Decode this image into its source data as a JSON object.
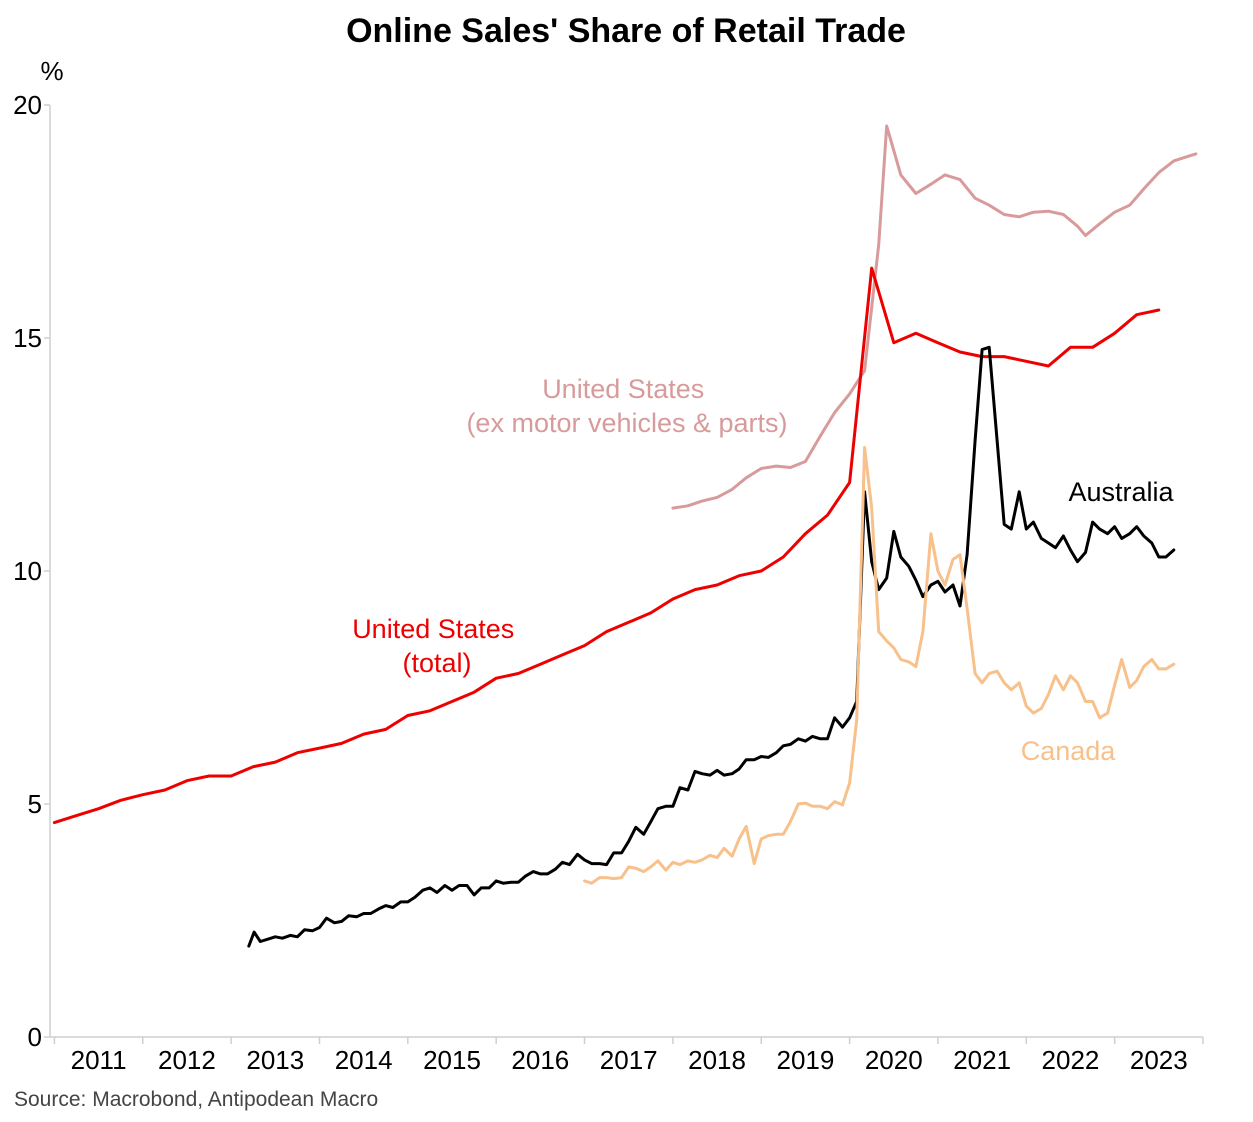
{
  "chart_data": {
    "type": "line",
    "title": "Online Sales' Share of Retail Trade",
    "ylabel": "%",
    "ylim": [
      0,
      20
    ],
    "yticks": [
      "0",
      "5",
      "10",
      "15",
      "20"
    ],
    "xlim": [
      2010.95,
      2024.0
    ],
    "xticks": [
      "2011",
      "2012",
      "2013",
      "2014",
      "2015",
      "2016",
      "2017",
      "2018",
      "2019",
      "2020",
      "2021",
      "2022",
      "2023"
    ],
    "source": "Source: Macrobond, Antipodean Macro",
    "colors": {
      "us_ex": "#d89a9a",
      "us_total": "#ee0000",
      "australia": "#000000",
      "canada": "#f8c08a"
    },
    "series": [
      {
        "id": "us_ex",
        "name_lines": [
          "United States",
          "(ex motor vehicles & parts)"
        ],
        "points": [
          [
            2018.0,
            11.35
          ],
          [
            2018.17,
            11.4
          ],
          [
            2018.33,
            11.5
          ],
          [
            2018.5,
            11.58
          ],
          [
            2018.67,
            11.75
          ],
          [
            2018.83,
            12.0
          ],
          [
            2019.0,
            12.2
          ],
          [
            2019.17,
            12.25
          ],
          [
            2019.33,
            12.22
          ],
          [
            2019.5,
            12.35
          ],
          [
            2019.67,
            12.9
          ],
          [
            2019.83,
            13.4
          ],
          [
            2020.0,
            13.8
          ],
          [
            2020.17,
            14.3
          ],
          [
            2020.33,
            17.0
          ],
          [
            2020.42,
            19.55
          ],
          [
            2020.58,
            18.5
          ],
          [
            2020.75,
            18.1
          ],
          [
            2020.92,
            18.3
          ],
          [
            2021.08,
            18.5
          ],
          [
            2021.25,
            18.4
          ],
          [
            2021.42,
            18.0
          ],
          [
            2021.58,
            17.85
          ],
          [
            2021.75,
            17.65
          ],
          [
            2021.92,
            17.6
          ],
          [
            2022.08,
            17.7
          ],
          [
            2022.25,
            17.72
          ],
          [
            2022.42,
            17.65
          ],
          [
            2022.58,
            17.4
          ],
          [
            2022.67,
            17.2
          ],
          [
            2022.83,
            17.45
          ],
          [
            2023.0,
            17.7
          ],
          [
            2023.17,
            17.85
          ],
          [
            2023.33,
            18.2
          ],
          [
            2023.5,
            18.55
          ],
          [
            2023.67,
            18.8
          ],
          [
            2023.83,
            18.9
          ],
          [
            2023.92,
            18.95
          ]
        ]
      },
      {
        "id": "us_total",
        "name_lines": [
          "United States",
          "(total)"
        ],
        "points": [
          [
            2011.0,
            4.6
          ],
          [
            2011.25,
            4.75
          ],
          [
            2011.5,
            4.9
          ],
          [
            2011.75,
            5.08
          ],
          [
            2012.0,
            5.2
          ],
          [
            2012.25,
            5.3
          ],
          [
            2012.5,
            5.5
          ],
          [
            2012.75,
            5.6
          ],
          [
            2013.0,
            5.6
          ],
          [
            2013.25,
            5.8
          ],
          [
            2013.5,
            5.9
          ],
          [
            2013.75,
            6.1
          ],
          [
            2014.0,
            6.2
          ],
          [
            2014.25,
            6.3
          ],
          [
            2014.5,
            6.5
          ],
          [
            2014.75,
            6.6
          ],
          [
            2015.0,
            6.9
          ],
          [
            2015.25,
            7.0
          ],
          [
            2015.5,
            7.2
          ],
          [
            2015.75,
            7.4
          ],
          [
            2016.0,
            7.7
          ],
          [
            2016.25,
            7.8
          ],
          [
            2016.5,
            8.0
          ],
          [
            2016.75,
            8.2
          ],
          [
            2017.0,
            8.4
          ],
          [
            2017.25,
            8.7
          ],
          [
            2017.5,
            8.9
          ],
          [
            2017.75,
            9.1
          ],
          [
            2018.0,
            9.4
          ],
          [
            2018.25,
            9.6
          ],
          [
            2018.5,
            9.7
          ],
          [
            2018.75,
            9.9
          ],
          [
            2019.0,
            10.0
          ],
          [
            2019.25,
            10.3
          ],
          [
            2019.5,
            10.8
          ],
          [
            2019.75,
            11.2
          ],
          [
            2020.0,
            11.9
          ],
          [
            2020.25,
            16.5
          ],
          [
            2020.5,
            14.9
          ],
          [
            2020.75,
            15.1
          ],
          [
            2021.0,
            14.9
          ],
          [
            2021.25,
            14.7
          ],
          [
            2021.5,
            14.6
          ],
          [
            2021.75,
            14.6
          ],
          [
            2022.0,
            14.5
          ],
          [
            2022.25,
            14.4
          ],
          [
            2022.5,
            14.8
          ],
          [
            2022.75,
            14.8
          ],
          [
            2023.0,
            15.1
          ],
          [
            2023.25,
            15.5
          ],
          [
            2023.5,
            15.6
          ]
        ]
      },
      {
        "id": "australia",
        "name_lines": [
          "Australia"
        ],
        "points": [
          [
            2013.2,
            1.95
          ],
          [
            2013.26,
            2.25
          ],
          [
            2013.33,
            2.05
          ],
          [
            2013.42,
            2.1
          ],
          [
            2013.5,
            2.15
          ],
          [
            2013.58,
            2.12
          ],
          [
            2013.67,
            2.18
          ],
          [
            2013.75,
            2.15
          ],
          [
            2013.83,
            2.3
          ],
          [
            2013.92,
            2.28
          ],
          [
            2014.0,
            2.35
          ],
          [
            2014.08,
            2.55
          ],
          [
            2014.17,
            2.45
          ],
          [
            2014.25,
            2.48
          ],
          [
            2014.33,
            2.6
          ],
          [
            2014.42,
            2.58
          ],
          [
            2014.5,
            2.65
          ],
          [
            2014.58,
            2.65
          ],
          [
            2014.67,
            2.75
          ],
          [
            2014.75,
            2.82
          ],
          [
            2014.83,
            2.78
          ],
          [
            2014.92,
            2.9
          ],
          [
            2015.0,
            2.9
          ],
          [
            2015.08,
            3.0
          ],
          [
            2015.17,
            3.15
          ],
          [
            2015.25,
            3.2
          ],
          [
            2015.33,
            3.1
          ],
          [
            2015.42,
            3.25
          ],
          [
            2015.5,
            3.15
          ],
          [
            2015.58,
            3.25
          ],
          [
            2015.67,
            3.25
          ],
          [
            2015.75,
            3.05
          ],
          [
            2015.83,
            3.2
          ],
          [
            2015.92,
            3.2
          ],
          [
            2016.0,
            3.35
          ],
          [
            2016.08,
            3.3
          ],
          [
            2016.17,
            3.32
          ],
          [
            2016.25,
            3.32
          ],
          [
            2016.33,
            3.45
          ],
          [
            2016.42,
            3.55
          ],
          [
            2016.5,
            3.5
          ],
          [
            2016.58,
            3.5
          ],
          [
            2016.67,
            3.6
          ],
          [
            2016.75,
            3.75
          ],
          [
            2016.83,
            3.7
          ],
          [
            2016.92,
            3.92
          ],
          [
            2017.0,
            3.8
          ],
          [
            2017.08,
            3.72
          ],
          [
            2017.17,
            3.72
          ],
          [
            2017.25,
            3.7
          ],
          [
            2017.33,
            3.95
          ],
          [
            2017.42,
            3.95
          ],
          [
            2017.5,
            4.2
          ],
          [
            2017.58,
            4.5
          ],
          [
            2017.67,
            4.35
          ],
          [
            2017.75,
            4.62
          ],
          [
            2017.83,
            4.9
          ],
          [
            2017.92,
            4.95
          ],
          [
            2018.0,
            4.95
          ],
          [
            2018.08,
            5.35
          ],
          [
            2018.17,
            5.3
          ],
          [
            2018.25,
            5.7
          ],
          [
            2018.33,
            5.65
          ],
          [
            2018.42,
            5.62
          ],
          [
            2018.5,
            5.72
          ],
          [
            2018.58,
            5.62
          ],
          [
            2018.67,
            5.65
          ],
          [
            2018.75,
            5.75
          ],
          [
            2018.83,
            5.95
          ],
          [
            2018.92,
            5.95
          ],
          [
            2019.0,
            6.02
          ],
          [
            2019.08,
            6.0
          ],
          [
            2019.17,
            6.1
          ],
          [
            2019.25,
            6.25
          ],
          [
            2019.33,
            6.28
          ],
          [
            2019.42,
            6.4
          ],
          [
            2019.5,
            6.35
          ],
          [
            2019.58,
            6.45
          ],
          [
            2019.67,
            6.4
          ],
          [
            2019.75,
            6.4
          ],
          [
            2019.83,
            6.85
          ],
          [
            2019.92,
            6.65
          ],
          [
            2020.0,
            6.85
          ],
          [
            2020.08,
            7.2
          ],
          [
            2020.17,
            11.7
          ],
          [
            2020.25,
            10.2
          ],
          [
            2020.33,
            9.6
          ],
          [
            2020.42,
            9.85
          ],
          [
            2020.5,
            10.85
          ],
          [
            2020.58,
            10.3
          ],
          [
            2020.67,
            10.1
          ],
          [
            2020.75,
            9.8
          ],
          [
            2020.83,
            9.45
          ],
          [
            2020.92,
            9.7
          ],
          [
            2021.0,
            9.78
          ],
          [
            2021.08,
            9.55
          ],
          [
            2021.17,
            9.7
          ],
          [
            2021.25,
            9.25
          ],
          [
            2021.33,
            10.35
          ],
          [
            2021.42,
            12.8
          ],
          [
            2021.5,
            14.75
          ],
          [
            2021.58,
            14.8
          ],
          [
            2021.67,
            12.8
          ],
          [
            2021.75,
            11.0
          ],
          [
            2021.83,
            10.9
          ],
          [
            2021.92,
            11.7
          ],
          [
            2022.0,
            10.9
          ],
          [
            2022.08,
            11.05
          ],
          [
            2022.17,
            10.7
          ],
          [
            2022.25,
            10.6
          ],
          [
            2022.33,
            10.5
          ],
          [
            2022.42,
            10.75
          ],
          [
            2022.5,
            10.45
          ],
          [
            2022.58,
            10.2
          ],
          [
            2022.67,
            10.4
          ],
          [
            2022.75,
            11.05
          ],
          [
            2022.83,
            10.9
          ],
          [
            2022.92,
            10.8
          ],
          [
            2023.0,
            10.95
          ],
          [
            2023.08,
            10.7
          ],
          [
            2023.17,
            10.8
          ],
          [
            2023.25,
            10.95
          ],
          [
            2023.33,
            10.75
          ],
          [
            2023.42,
            10.6
          ],
          [
            2023.5,
            10.3
          ],
          [
            2023.58,
            10.3
          ],
          [
            2023.67,
            10.45
          ]
        ]
      },
      {
        "id": "canada",
        "name_lines": [
          "Canada"
        ],
        "points": [
          [
            2017.0,
            3.35
          ],
          [
            2017.08,
            3.3
          ],
          [
            2017.17,
            3.42
          ],
          [
            2017.25,
            3.42
          ],
          [
            2017.33,
            3.4
          ],
          [
            2017.42,
            3.42
          ],
          [
            2017.5,
            3.65
          ],
          [
            2017.58,
            3.62
          ],
          [
            2017.67,
            3.55
          ],
          [
            2017.75,
            3.65
          ],
          [
            2017.83,
            3.78
          ],
          [
            2017.92,
            3.58
          ],
          [
            2018.0,
            3.75
          ],
          [
            2018.08,
            3.7
          ],
          [
            2018.17,
            3.78
          ],
          [
            2018.25,
            3.75
          ],
          [
            2018.33,
            3.8
          ],
          [
            2018.42,
            3.9
          ],
          [
            2018.5,
            3.85
          ],
          [
            2018.58,
            4.05
          ],
          [
            2018.67,
            3.88
          ],
          [
            2018.75,
            4.25
          ],
          [
            2018.83,
            4.52
          ],
          [
            2018.92,
            3.72
          ],
          [
            2019.0,
            4.25
          ],
          [
            2019.08,
            4.32
          ],
          [
            2019.17,
            4.35
          ],
          [
            2019.25,
            4.35
          ],
          [
            2019.33,
            4.62
          ],
          [
            2019.42,
            5.0
          ],
          [
            2019.5,
            5.02
          ],
          [
            2019.58,
            4.95
          ],
          [
            2019.67,
            4.95
          ],
          [
            2019.75,
            4.9
          ],
          [
            2019.83,
            5.05
          ],
          [
            2019.92,
            4.98
          ],
          [
            2020.0,
            5.45
          ],
          [
            2020.08,
            6.8
          ],
          [
            2020.17,
            12.65
          ],
          [
            2020.25,
            11.35
          ],
          [
            2020.33,
            8.7
          ],
          [
            2020.42,
            8.5
          ],
          [
            2020.5,
            8.35
          ],
          [
            2020.58,
            8.1
          ],
          [
            2020.67,
            8.05
          ],
          [
            2020.75,
            7.95
          ],
          [
            2020.83,
            8.7
          ],
          [
            2020.92,
            10.8
          ],
          [
            2021.0,
            10.0
          ],
          [
            2021.08,
            9.7
          ],
          [
            2021.17,
            10.25
          ],
          [
            2021.25,
            10.35
          ],
          [
            2021.33,
            9.2
          ],
          [
            2021.42,
            7.8
          ],
          [
            2021.5,
            7.6
          ],
          [
            2021.58,
            7.8
          ],
          [
            2021.67,
            7.85
          ],
          [
            2021.75,
            7.6
          ],
          [
            2021.83,
            7.45
          ],
          [
            2021.92,
            7.6
          ],
          [
            2022.0,
            7.1
          ],
          [
            2022.08,
            6.95
          ],
          [
            2022.17,
            7.05
          ],
          [
            2022.25,
            7.35
          ],
          [
            2022.33,
            7.75
          ],
          [
            2022.42,
            7.45
          ],
          [
            2022.5,
            7.75
          ],
          [
            2022.58,
            7.6
          ],
          [
            2022.67,
            7.2
          ],
          [
            2022.75,
            7.2
          ],
          [
            2022.83,
            6.85
          ],
          [
            2022.92,
            6.95
          ],
          [
            2023.0,
            7.55
          ],
          [
            2023.08,
            8.1
          ],
          [
            2023.17,
            7.5
          ],
          [
            2023.25,
            7.65
          ],
          [
            2023.33,
            7.95
          ],
          [
            2023.42,
            8.1
          ],
          [
            2023.5,
            7.9
          ],
          [
            2023.58,
            7.9
          ],
          [
            2023.67,
            8.0
          ]
        ]
      }
    ]
  }
}
